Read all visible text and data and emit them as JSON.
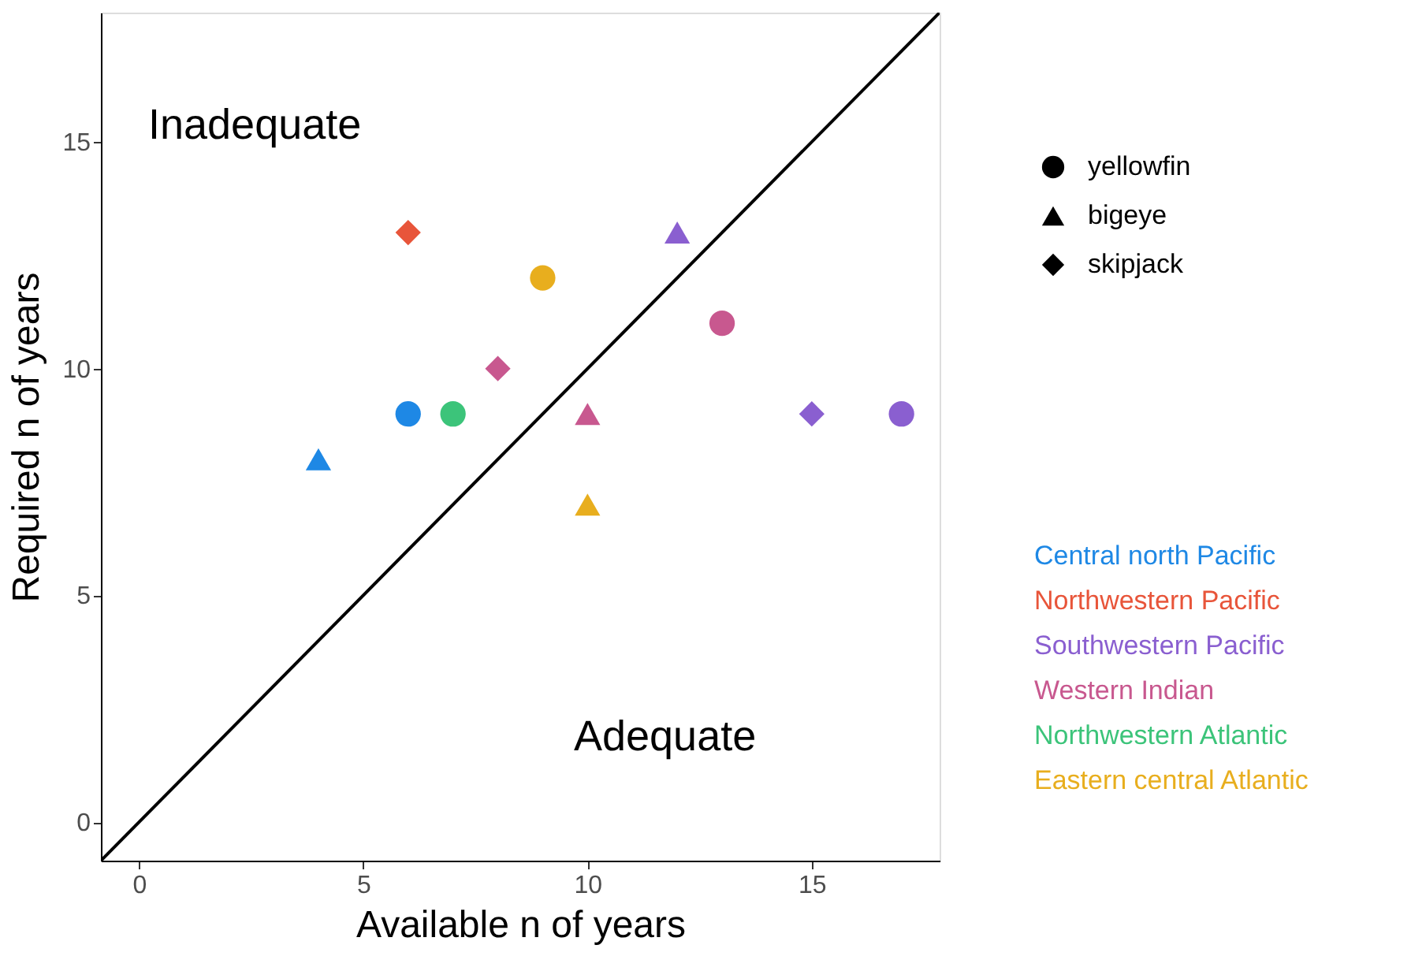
{
  "chart_data": {
    "type": "scatter",
    "xlabel": "Available n of years",
    "ylabel": "Required n of years",
    "xlim": [
      -0.85,
      17.85
    ],
    "ylim": [
      -0.85,
      17.85
    ],
    "xticks": [
      0,
      5,
      10,
      15
    ],
    "yticks": [
      0,
      5,
      10,
      15
    ],
    "legend": "right",
    "series": [
      {
        "name": "yellowfin",
        "color": "#000000",
        "marker": "circle"
      },
      {
        "name": "bigeye",
        "color": "#000000",
        "marker": "triangle"
      },
      {
        "name": "skipjack",
        "color": "#000000",
        "marker": "diamond"
      },
      {
        "name": "Central north Pacific",
        "color": "#1e88e5",
        "marker": [
          "circle",
          "triangle"
        ],
        "x": [
          6,
          4
        ],
        "values": [
          9,
          8
        ]
      },
      {
        "name": "Northwestern Pacific",
        "color": "#e8553a",
        "marker": [
          "diamond"
        ],
        "x": [
          6
        ],
        "values": [
          13
        ]
      },
      {
        "name": "Southwestern Pacific",
        "color": "#8a5fd0",
        "marker": [
          "circle",
          "triangle",
          "diamond"
        ],
        "x": [
          17,
          12,
          15
        ],
        "values": [
          9,
          13,
          9
        ]
      },
      {
        "name": "Western Indian",
        "color": "#c8588f",
        "marker": [
          "circle",
          "triangle",
          "diamond"
        ],
        "x": [
          13,
          10,
          8
        ],
        "values": [
          11,
          9,
          10
        ]
      },
      {
        "name": "Northwestern Atlantic",
        "color": "#3cc47a",
        "marker": [
          "circle"
        ],
        "x": [
          7
        ],
        "values": [
          9
        ]
      },
      {
        "name": "Eastern central Atlantic",
        "color": "#e8ae1e",
        "marker": [
          "circle",
          "triangle"
        ],
        "x": [
          9,
          10
        ],
        "values": [
          12,
          7
        ]
      },
      {
        "type": "line",
        "color": "#000000",
        "x": [
          -0.85,
          17.85
        ],
        "values": [
          -0.85,
          17.85
        ]
      }
    ],
    "annotations": [
      "Inadequate",
      "Adequate"
    ]
  }
}
